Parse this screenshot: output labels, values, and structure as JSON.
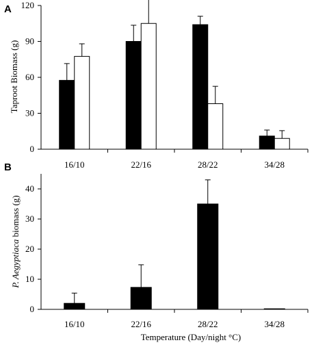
{
  "chart_data": [
    {
      "type": "bar",
      "panel_label": "A",
      "categories": [
        "16/10",
        "22/16",
        "28/22",
        "34/28"
      ],
      "series": [
        {
          "values": [
            57.5,
            90,
            104,
            11
          ],
          "errors": [
            14,
            13.5,
            7,
            5
          ],
          "color": "#000000"
        },
        {
          "values": [
            77.5,
            105,
            38,
            9
          ],
          "errors": [
            10.5,
            20,
            14.5,
            6.5
          ],
          "color": "#ffffff"
        }
      ],
      "title": "",
      "xlabel": "",
      "ylabel": "Taproot Biomass  (g)",
      "ylim": [
        0,
        120
      ],
      "yticks": [
        0,
        30,
        60,
        90,
        120
      ],
      "grid": false
    },
    {
      "type": "bar",
      "panel_label": "B",
      "categories": [
        "16/10",
        "22/16",
        "28/22",
        "34/28"
      ],
      "series": [
        {
          "values": [
            2,
            7.3,
            35,
            0.2
          ],
          "errors": [
            3.4,
            7.5,
            8,
            0
          ],
          "color": "#000000"
        }
      ],
      "title": "",
      "xlabel": "Temperature  (Day/night  °C)",
      "ylabel_italic": "P. Aegyptiaca",
      "ylabel_suffix": " biomass  (g)",
      "ylim": [
        0,
        45
      ],
      "yticks": [
        0,
        10,
        20,
        30,
        40
      ],
      "grid": false
    }
  ]
}
